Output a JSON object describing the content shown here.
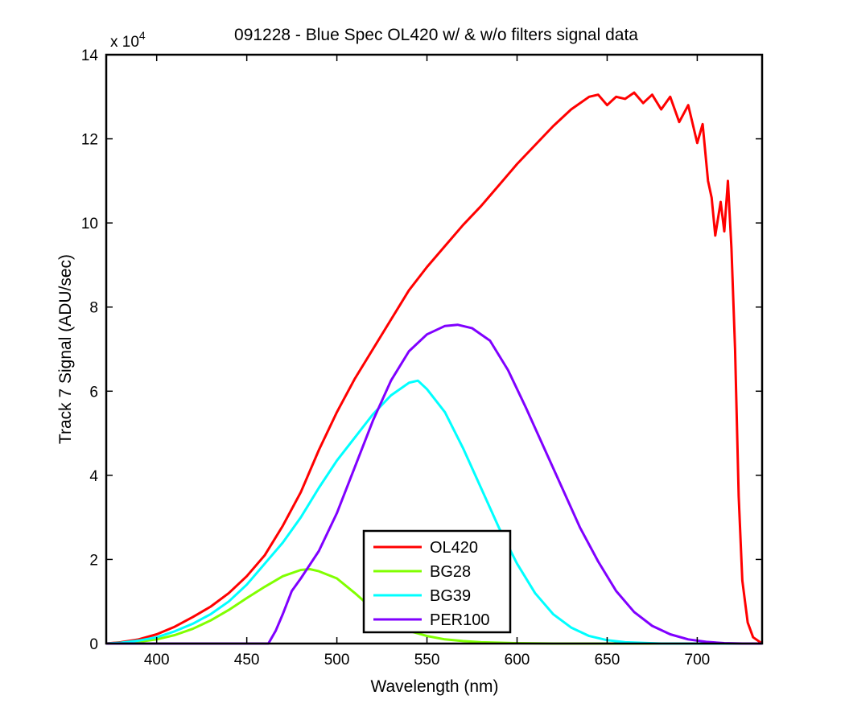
{
  "chart_data": {
    "type": "line",
    "title": "091228 - Blue Spec OL420 w/ & w/o filters signal data",
    "xlabel": "Wavelength (nm)",
    "ylabel": "Track 7 Signal (ADU/sec)",
    "exponent_label": {
      "base": "x 10",
      "power": "4"
    },
    "xlim": [
      372,
      736
    ],
    "ylim": [
      0,
      140000
    ],
    "xticks": [
      400,
      450,
      500,
      550,
      600,
      650,
      700
    ],
    "yticks": [
      0,
      20000,
      40000,
      60000,
      80000,
      100000,
      120000,
      140000
    ],
    "ytick_labels": [
      "0",
      "2",
      "4",
      "6",
      "8",
      "10",
      "12",
      "14"
    ],
    "grid": false,
    "legend_position": "bottom-center",
    "series": [
      {
        "name": "OL420",
        "color": "#ff0000",
        "points": [
          [
            372,
            0
          ],
          [
            380,
            300
          ],
          [
            390,
            1000
          ],
          [
            400,
            2200
          ],
          [
            410,
            4000
          ],
          [
            420,
            6300
          ],
          [
            430,
            8800
          ],
          [
            440,
            12000
          ],
          [
            450,
            16000
          ],
          [
            460,
            21000
          ],
          [
            470,
            28000
          ],
          [
            480,
            36000
          ],
          [
            490,
            46000
          ],
          [
            500,
            55000
          ],
          [
            510,
            63000
          ],
          [
            520,
            70000
          ],
          [
            530,
            77000
          ],
          [
            540,
            84000
          ],
          [
            550,
            89500
          ],
          [
            560,
            94500
          ],
          [
            570,
            99500
          ],
          [
            580,
            104000
          ],
          [
            590,
            109000
          ],
          [
            600,
            114000
          ],
          [
            610,
            118500
          ],
          [
            620,
            123000
          ],
          [
            630,
            127000
          ],
          [
            640,
            130000
          ],
          [
            645,
            130500
          ],
          [
            650,
            128000
          ],
          [
            655,
            130000
          ],
          [
            660,
            129500
          ],
          [
            665,
            131000
          ],
          [
            670,
            128500
          ],
          [
            675,
            130500
          ],
          [
            680,
            127000
          ],
          [
            685,
            130000
          ],
          [
            690,
            124000
          ],
          [
            695,
            128000
          ],
          [
            700,
            119000
          ],
          [
            703,
            123500
          ],
          [
            706,
            110000
          ],
          [
            708,
            106000
          ],
          [
            710,
            97000
          ],
          [
            713,
            105000
          ],
          [
            715,
            98000
          ],
          [
            717,
            110000
          ],
          [
            719,
            94000
          ],
          [
            721,
            70000
          ],
          [
            723,
            35000
          ],
          [
            725,
            15000
          ],
          [
            728,
            5000
          ],
          [
            731,
            1500
          ],
          [
            736,
            0
          ]
        ]
      },
      {
        "name": "BG28",
        "color": "#80ff00",
        "points": [
          [
            372,
            0
          ],
          [
            390,
            400
          ],
          [
            400,
            1000
          ],
          [
            410,
            2000
          ],
          [
            420,
            3500
          ],
          [
            430,
            5500
          ],
          [
            440,
            8000
          ],
          [
            450,
            10800
          ],
          [
            460,
            13500
          ],
          [
            470,
            16000
          ],
          [
            480,
            17500
          ],
          [
            485,
            17700
          ],
          [
            490,
            17200
          ],
          [
            500,
            15500
          ],
          [
            510,
            12000
          ],
          [
            520,
            8200
          ],
          [
            530,
            5000
          ],
          [
            540,
            3000
          ],
          [
            550,
            1800
          ],
          [
            560,
            1000
          ],
          [
            570,
            600
          ],
          [
            580,
            300
          ],
          [
            600,
            100
          ],
          [
            620,
            0
          ],
          [
            736,
            0
          ]
        ]
      },
      {
        "name": "BG39",
        "color": "#00ffff",
        "points": [
          [
            372,
            0
          ],
          [
            380,
            200
          ],
          [
            390,
            700
          ],
          [
            400,
            1500
          ],
          [
            410,
            2900
          ],
          [
            420,
            4700
          ],
          [
            430,
            7000
          ],
          [
            440,
            10000
          ],
          [
            450,
            14000
          ],
          [
            460,
            19000
          ],
          [
            470,
            24000
          ],
          [
            480,
            30000
          ],
          [
            490,
            37000
          ],
          [
            500,
            43500
          ],
          [
            510,
            49000
          ],
          [
            520,
            54500
          ],
          [
            530,
            59000
          ],
          [
            540,
            62000
          ],
          [
            545,
            62500
          ],
          [
            550,
            60500
          ],
          [
            560,
            55000
          ],
          [
            570,
            46500
          ],
          [
            580,
            37000
          ],
          [
            590,
            27500
          ],
          [
            600,
            19000
          ],
          [
            610,
            12000
          ],
          [
            620,
            7000
          ],
          [
            630,
            3800
          ],
          [
            640,
            1800
          ],
          [
            650,
            800
          ],
          [
            660,
            300
          ],
          [
            680,
            0
          ],
          [
            736,
            0
          ]
        ]
      },
      {
        "name": "PER100",
        "color": "#8000ff",
        "points": [
          [
            372,
            0
          ],
          [
            462,
            0
          ],
          [
            466,
            3000
          ],
          [
            470,
            7000
          ],
          [
            475,
            12500
          ],
          [
            480,
            15500
          ],
          [
            490,
            22000
          ],
          [
            500,
            31000
          ],
          [
            510,
            42000
          ],
          [
            520,
            53000
          ],
          [
            530,
            62500
          ],
          [
            540,
            69500
          ],
          [
            550,
            73500
          ],
          [
            560,
            75500
          ],
          [
            567,
            75800
          ],
          [
            575,
            75000
          ],
          [
            585,
            72000
          ],
          [
            595,
            65000
          ],
          [
            605,
            56000
          ],
          [
            615,
            46500
          ],
          [
            625,
            37000
          ],
          [
            635,
            27500
          ],
          [
            645,
            19500
          ],
          [
            655,
            12500
          ],
          [
            665,
            7500
          ],
          [
            675,
            4200
          ],
          [
            685,
            2200
          ],
          [
            695,
            1000
          ],
          [
            705,
            400
          ],
          [
            715,
            100
          ],
          [
            725,
            0
          ],
          [
            736,
            0
          ]
        ]
      }
    ]
  }
}
